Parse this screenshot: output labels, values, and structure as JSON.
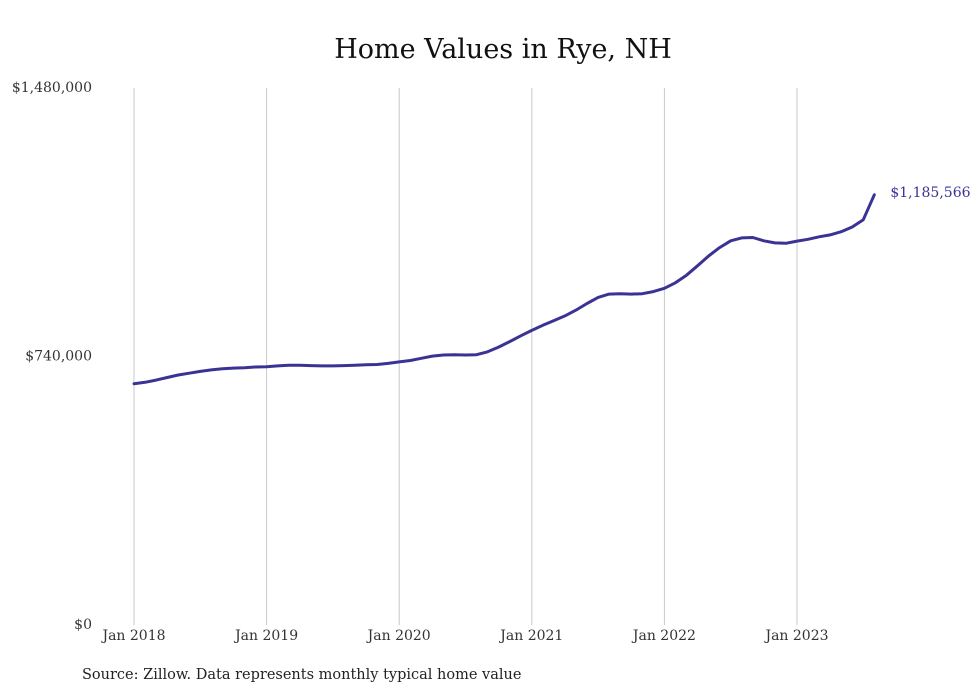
{
  "chart_data": {
    "type": "line",
    "title": "Home Values in Rye, NH",
    "xlabel": "",
    "ylabel": "",
    "x_ticks": [
      "Jan 2018",
      "Jan 2019",
      "Jan 2020",
      "Jan 2021",
      "Jan 2022",
      "Jan 2023"
    ],
    "y_ticks": [
      "$0",
      "$740,000",
      "$1,480,000"
    ],
    "ylim": [
      0,
      1480000
    ],
    "xlim": [
      "2018-01",
      "2023-08"
    ],
    "grid": "vertical",
    "line_color": "#3a3395",
    "end_label": "$1,185,566",
    "series": [
      {
        "x": [
          "2018-01",
          "2018-02",
          "2018-03",
          "2018-04",
          "2018-05",
          "2018-06",
          "2018-07",
          "2018-08",
          "2018-09",
          "2018-10",
          "2018-11",
          "2018-12",
          "2019-01",
          "2019-02",
          "2019-03",
          "2019-04",
          "2019-05",
          "2019-06",
          "2019-07",
          "2019-08",
          "2019-09",
          "2019-10",
          "2019-11",
          "2019-12",
          "2020-01",
          "2020-02",
          "2020-03",
          "2020-04",
          "2020-05",
          "2020-06",
          "2020-07",
          "2020-08",
          "2020-09",
          "2020-10",
          "2020-11",
          "2020-12",
          "2021-01",
          "2021-02",
          "2021-03",
          "2021-04",
          "2021-05",
          "2021-06",
          "2021-07",
          "2021-08",
          "2021-09",
          "2021-10",
          "2021-11",
          "2021-12",
          "2022-01",
          "2022-02",
          "2022-03",
          "2022-04",
          "2022-05",
          "2022-06",
          "2022-07",
          "2022-08",
          "2022-09",
          "2022-10",
          "2022-11",
          "2022-12",
          "2023-01",
          "2023-02",
          "2023-03",
          "2023-04",
          "2023-05",
          "2023-06",
          "2023-07",
          "2023-08"
        ],
        "values": [
          665000,
          669000,
          675000,
          682000,
          689000,
          694000,
          699000,
          703000,
          706000,
          708000,
          709000,
          711000,
          712000,
          714000,
          716000,
          716000,
          715000,
          714000,
          714000,
          715000,
          716000,
          717000,
          718000,
          721000,
          725000,
          729000,
          735000,
          741000,
          744000,
          745000,
          744000,
          745000,
          753000,
          766000,
          781000,
          797000,
          812000,
          826000,
          839000,
          852000,
          868000,
          886000,
          903000,
          912000,
          913000,
          912000,
          913000,
          919000,
          928000,
          943000,
          964000,
          990000,
          1017000,
          1040000,
          1059000,
          1067000,
          1068000,
          1059000,
          1053000,
          1052000,
          1058000,
          1063000,
          1070000,
          1075000,
          1084000,
          1097000,
          1117000,
          1185566
        ]
      }
    ]
  },
  "source_note": "Source: Zillow. Data represents monthly typical home value"
}
